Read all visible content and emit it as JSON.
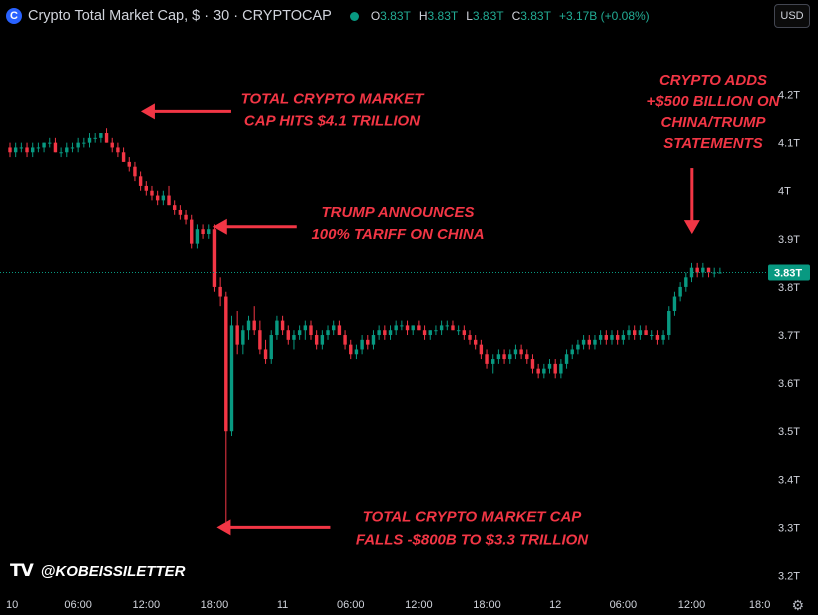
{
  "header": {
    "title": "Crypto Total Market Cap, $ · 30 · CRYPTOCAP",
    "ohlc": [
      {
        "key": "O",
        "value": "3.83T"
      },
      {
        "key": "H",
        "value": "3.83T"
      },
      {
        "key": "L",
        "value": "3.83T"
      },
      {
        "key": "C",
        "value": "3.83T"
      }
    ],
    "change": "+3.17B (+0.08%)",
    "currency": "USD"
  },
  "watermark": {
    "handle": "@KOBEISSILETTER"
  },
  "colors": {
    "up": "#089981",
    "down": "#f23645",
    "annotation": "#f23645",
    "text": "#d1d4dc",
    "background": "#000000"
  },
  "chart_data": {
    "type": "candlestick",
    "title": "Crypto Total Market Cap, $ · 30 · CRYPTOCAP",
    "ylim": [
      3.2,
      4.25
    ],
    "yticks": [
      {
        "v": 4.2,
        "label": "4.2T"
      },
      {
        "v": 4.1,
        "label": "4.1T"
      },
      {
        "v": 4.0,
        "label": "4T"
      },
      {
        "v": 3.9,
        "label": "3.9T"
      },
      {
        "v": 3.8,
        "label": "3.8T"
      },
      {
        "v": 3.7,
        "label": "3.7T"
      },
      {
        "v": 3.6,
        "label": "3.6T"
      },
      {
        "v": 3.5,
        "label": "3.5T"
      },
      {
        "v": 3.4,
        "label": "3.4T"
      },
      {
        "v": 3.3,
        "label": "3.3T"
      },
      {
        "v": 3.2,
        "label": "3.2T"
      }
    ],
    "xlim_hours": [
      0,
      67
    ],
    "xticks": [
      {
        "h": 0,
        "label": "10"
      },
      {
        "h": 6,
        "label": "06:00"
      },
      {
        "h": 12,
        "label": "12:00"
      },
      {
        "h": 18,
        "label": "18:00"
      },
      {
        "h": 24,
        "label": "11"
      },
      {
        "h": 30,
        "label": "06:00"
      },
      {
        "h": 36,
        "label": "12:00"
      },
      {
        "h": 42,
        "label": "18:00"
      },
      {
        "h": 48,
        "label": "12"
      },
      {
        "h": 54,
        "label": "06:00"
      },
      {
        "h": 60,
        "label": "12:00"
      },
      {
        "h": 66,
        "label": "18:0"
      }
    ],
    "last_price": {
      "value": 3.83,
      "label": "3.83T"
    },
    "key_points": [
      {
        "hour": 11,
        "value": 4.12
      },
      {
        "hour": 17,
        "value": 3.92
      },
      {
        "hour": 17.5,
        "value": 3.3
      },
      {
        "hour": 59.5,
        "value": 3.84
      }
    ],
    "annotations": [
      {
        "lines": [
          "TOTAL CRYPTO MARKET",
          "CAP HITS $4.1 TRILLION"
        ],
        "hour": 11,
        "value": 4.14
      },
      {
        "lines": [
          "TRUMP ANNOUNCES",
          "100% TARIFF ON CHINA"
        ],
        "hour": 17.5,
        "value": 3.925
      },
      {
        "lines": [
          "TOTAL CRYPTO MARKET CAP",
          "FALLS -$800B TO $3.3 TRILLION"
        ],
        "hour": 18,
        "value": 3.3
      },
      {
        "lines": [
          "CRYPTO ADDS",
          "+$500 BILLION ON",
          "CHINA/TRUMP",
          "STATEMENTS"
        ],
        "hour": 59.5,
        "value": 3.86
      }
    ],
    "candles": [
      [
        4.09,
        4.1,
        4.07,
        4.08
      ],
      [
        4.08,
        4.1,
        4.07,
        4.09
      ],
      [
        4.09,
        4.1,
        4.08,
        4.09
      ],
      [
        4.09,
        4.1,
        4.07,
        4.08
      ],
      [
        4.08,
        4.1,
        4.07,
        4.09
      ],
      [
        4.09,
        4.1,
        4.08,
        4.09
      ],
      [
        4.09,
        4.1,
        4.08,
        4.1
      ],
      [
        4.1,
        4.11,
        4.09,
        4.1
      ],
      [
        4.1,
        4.11,
        4.08,
        4.08
      ],
      [
        4.08,
        4.09,
        4.07,
        4.08
      ],
      [
        4.08,
        4.1,
        4.07,
        4.09
      ],
      [
        4.09,
        4.1,
        4.08,
        4.09
      ],
      [
        4.09,
        4.11,
        4.08,
        4.1
      ],
      [
        4.1,
        4.11,
        4.09,
        4.1
      ],
      [
        4.1,
        4.12,
        4.09,
        4.11
      ],
      [
        4.11,
        4.12,
        4.1,
        4.11
      ],
      [
        4.11,
        4.12,
        4.1,
        4.12
      ],
      [
        4.12,
        4.13,
        4.1,
        4.1
      ],
      [
        4.1,
        4.11,
        4.08,
        4.09
      ],
      [
        4.09,
        4.1,
        4.07,
        4.08
      ],
      [
        4.08,
        4.09,
        4.06,
        4.06
      ],
      [
        4.06,
        4.07,
        4.04,
        4.05
      ],
      [
        4.05,
        4.06,
        4.02,
        4.03
      ],
      [
        4.03,
        4.04,
        4.0,
        4.01
      ],
      [
        4.01,
        4.02,
        3.99,
        4.0
      ],
      [
        4.0,
        4.01,
        3.98,
        3.99
      ],
      [
        3.99,
        4.0,
        3.97,
        3.98
      ],
      [
        3.98,
        4.0,
        3.97,
        3.99
      ],
      [
        3.99,
        4.01,
        3.97,
        3.97
      ],
      [
        3.97,
        3.98,
        3.95,
        3.96
      ],
      [
        3.96,
        3.97,
        3.94,
        3.95
      ],
      [
        3.95,
        3.96,
        3.93,
        3.94
      ],
      [
        3.94,
        3.95,
        3.88,
        3.89
      ],
      [
        3.89,
        3.93,
        3.88,
        3.92
      ],
      [
        3.92,
        3.93,
        3.9,
        3.91
      ],
      [
        3.91,
        3.93,
        3.9,
        3.92
      ],
      [
        3.92,
        3.93,
        3.79,
        3.8
      ],
      [
        3.8,
        3.82,
        3.76,
        3.78
      ],
      [
        3.78,
        3.79,
        3.3,
        3.5
      ],
      [
        3.5,
        3.74,
        3.49,
        3.72
      ],
      [
        3.72,
        3.75,
        3.66,
        3.68
      ],
      [
        3.68,
        3.72,
        3.66,
        3.71
      ],
      [
        3.71,
        3.74,
        3.69,
        3.73
      ],
      [
        3.73,
        3.76,
        3.7,
        3.71
      ],
      [
        3.71,
        3.73,
        3.66,
        3.67
      ],
      [
        3.67,
        3.69,
        3.64,
        3.65
      ],
      [
        3.65,
        3.71,
        3.64,
        3.7
      ],
      [
        3.7,
        3.74,
        3.69,
        3.73
      ],
      [
        3.73,
        3.74,
        3.7,
        3.71
      ],
      [
        3.71,
        3.72,
        3.68,
        3.69
      ],
      [
        3.69,
        3.71,
        3.67,
        3.7
      ],
      [
        3.7,
        3.72,
        3.69,
        3.71
      ],
      [
        3.71,
        3.73,
        3.69,
        3.72
      ],
      [
        3.72,
        3.73,
        3.69,
        3.7
      ],
      [
        3.7,
        3.71,
        3.67,
        3.68
      ],
      [
        3.68,
        3.71,
        3.67,
        3.7
      ],
      [
        3.7,
        3.72,
        3.69,
        3.71
      ],
      [
        3.71,
        3.73,
        3.7,
        3.72
      ],
      [
        3.72,
        3.73,
        3.7,
        3.7
      ],
      [
        3.7,
        3.71,
        3.67,
        3.68
      ],
      [
        3.68,
        3.69,
        3.65,
        3.66
      ],
      [
        3.66,
        3.68,
        3.65,
        3.67
      ],
      [
        3.67,
        3.7,
        3.66,
        3.69
      ],
      [
        3.69,
        3.7,
        3.67,
        3.68
      ],
      [
        3.68,
        3.71,
        3.67,
        3.7
      ],
      [
        3.7,
        3.72,
        3.69,
        3.71
      ],
      [
        3.71,
        3.72,
        3.69,
        3.7
      ],
      [
        3.7,
        3.72,
        3.69,
        3.71
      ],
      [
        3.71,
        3.73,
        3.7,
        3.72
      ],
      [
        3.72,
        3.73,
        3.71,
        3.72
      ],
      [
        3.72,
        3.73,
        3.7,
        3.71
      ],
      [
        3.71,
        3.72,
        3.7,
        3.72
      ],
      [
        3.72,
        3.73,
        3.71,
        3.71
      ],
      [
        3.71,
        3.72,
        3.69,
        3.7
      ],
      [
        3.7,
        3.71,
        3.69,
        3.71
      ],
      [
        3.71,
        3.72,
        3.7,
        3.71
      ],
      [
        3.71,
        3.73,
        3.7,
        3.72
      ],
      [
        3.72,
        3.73,
        3.71,
        3.72
      ],
      [
        3.72,
        3.73,
        3.71,
        3.71
      ],
      [
        3.71,
        3.72,
        3.7,
        3.71
      ],
      [
        3.71,
        3.72,
        3.69,
        3.7
      ],
      [
        3.7,
        3.71,
        3.68,
        3.69
      ],
      [
        3.69,
        3.7,
        3.67,
        3.68
      ],
      [
        3.68,
        3.69,
        3.65,
        3.66
      ],
      [
        3.66,
        3.67,
        3.63,
        3.64
      ],
      [
        3.64,
        3.66,
        3.62,
        3.65
      ],
      [
        3.65,
        3.67,
        3.64,
        3.66
      ],
      [
        3.66,
        3.67,
        3.64,
        3.65
      ],
      [
        3.65,
        3.67,
        3.64,
        3.66
      ],
      [
        3.66,
        3.68,
        3.65,
        3.67
      ],
      [
        3.67,
        3.68,
        3.65,
        3.66
      ],
      [
        3.66,
        3.67,
        3.64,
        3.65
      ],
      [
        3.65,
        3.66,
        3.62,
        3.63
      ],
      [
        3.63,
        3.64,
        3.61,
        3.62
      ],
      [
        3.62,
        3.64,
        3.61,
        3.63
      ],
      [
        3.63,
        3.65,
        3.62,
        3.64
      ],
      [
        3.64,
        3.65,
        3.61,
        3.62
      ],
      [
        3.62,
        3.65,
        3.61,
        3.64
      ],
      [
        3.64,
        3.67,
        3.63,
        3.66
      ],
      [
        3.66,
        3.68,
        3.65,
        3.67
      ],
      [
        3.67,
        3.69,
        3.66,
        3.68
      ],
      [
        3.68,
        3.7,
        3.67,
        3.69
      ],
      [
        3.69,
        3.7,
        3.67,
        3.68
      ],
      [
        3.68,
        3.7,
        3.67,
        3.69
      ],
      [
        3.69,
        3.71,
        3.68,
        3.7
      ],
      [
        3.7,
        3.71,
        3.68,
        3.69
      ],
      [
        3.69,
        3.71,
        3.68,
        3.7
      ],
      [
        3.7,
        3.71,
        3.68,
        3.69
      ],
      [
        3.69,
        3.71,
        3.68,
        3.7
      ],
      [
        3.7,
        3.72,
        3.69,
        3.71
      ],
      [
        3.71,
        3.72,
        3.69,
        3.7
      ],
      [
        3.7,
        3.72,
        3.69,
        3.71
      ],
      [
        3.71,
        3.72,
        3.7,
        3.7
      ],
      [
        3.7,
        3.71,
        3.69,
        3.7
      ],
      [
        3.7,
        3.71,
        3.68,
        3.69
      ],
      [
        3.69,
        3.71,
        3.68,
        3.7
      ],
      [
        3.7,
        3.76,
        3.69,
        3.75
      ],
      [
        3.75,
        3.79,
        3.74,
        3.78
      ],
      [
        3.78,
        3.81,
        3.77,
        3.8
      ],
      [
        3.8,
        3.83,
        3.79,
        3.82
      ],
      [
        3.82,
        3.85,
        3.81,
        3.84
      ],
      [
        3.84,
        3.85,
        3.82,
        3.83
      ],
      [
        3.83,
        3.85,
        3.82,
        3.84
      ],
      [
        3.84,
        3.84,
        3.82,
        3.83
      ],
      [
        3.83,
        3.84,
        3.82,
        3.83
      ],
      [
        3.83,
        3.84,
        3.83,
        3.83
      ]
    ]
  }
}
